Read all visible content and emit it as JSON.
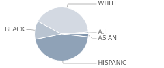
{
  "chart_data": {
    "type": "pie",
    "categories": [
      "WHITE",
      "A.I.",
      "ASIAN",
      "HISPANIC",
      "BLACK"
    ],
    "values": [
      41,
      1,
      2,
      45,
      11
    ],
    "colors": [
      "#d3d9e2",
      "#5f7793",
      "#7e93ab",
      "#8fa2b7",
      "#b9c4d1"
    ]
  }
}
